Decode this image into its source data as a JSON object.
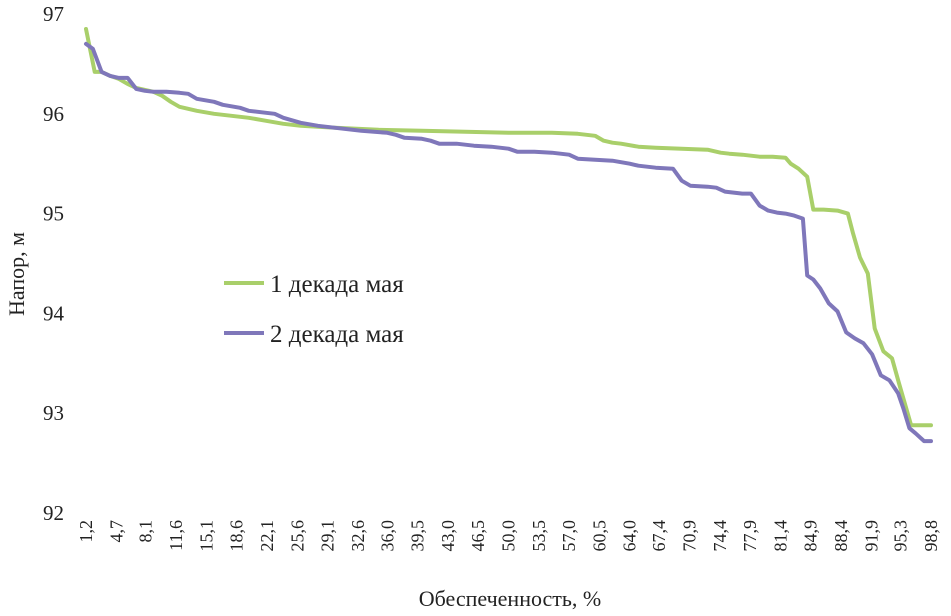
{
  "chart_data": {
    "type": "line",
    "title": "",
    "xlabel": "Обеспеченность, %",
    "ylabel": "Напор, м",
    "ylim": [
      92,
      97
    ],
    "yticks": [
      "92",
      "93",
      "94",
      "95",
      "96",
      "97"
    ],
    "xticks": [
      "1,2",
      "4,7",
      "8,1",
      "11,6",
      "15,1",
      "18,6",
      "22,1",
      "25,6",
      "29,1",
      "32,6",
      "36,0",
      "39,5",
      "43,0",
      "46,5",
      "50,0",
      "53,5",
      "57,0",
      "60,5",
      "64,0",
      "67,4",
      "70,9",
      "74,4",
      "77,9",
      "81,4",
      "84,9",
      "88,4",
      "91,9",
      "95,3",
      "98,8"
    ],
    "xlim": [
      1.2,
      98.8
    ],
    "grid": false,
    "legend_position": "center-left",
    "series": [
      {
        "name": "1 декада мая",
        "color": "#a9cf6a",
        "x": [
          1.2,
          2.2,
          3.0,
          4.0,
          5.0,
          6.0,
          7.0,
          9.0,
          10.0,
          11.0,
          12.0,
          14.0,
          16.0,
          18.0,
          20.0,
          22.0,
          24.0,
          26.0,
          28.0,
          30.0,
          35.0,
          40.0,
          45.0,
          50.0,
          55.0,
          58.0,
          60.0,
          61.0,
          62.0,
          63.0,
          65.0,
          67.0,
          70.0,
          73.0,
          74.5,
          75.5,
          77.0,
          79.0,
          80.5,
          82.0,
          82.6,
          83.5,
          84.5,
          85.2,
          86.4,
          88.0,
          89.2,
          89.8,
          90.6,
          91.5,
          92.3,
          93.3,
          94.3,
          95.1,
          96.5,
          97.3,
          98.8
        ],
        "values": [
          96.85,
          96.42,
          96.42,
          96.38,
          96.35,
          96.3,
          96.26,
          96.22,
          96.18,
          96.12,
          96.07,
          96.03,
          96.0,
          95.98,
          95.96,
          95.93,
          95.9,
          95.88,
          95.87,
          95.86,
          95.84,
          95.83,
          95.82,
          95.81,
          95.81,
          95.8,
          95.78,
          95.73,
          95.71,
          95.7,
          95.67,
          95.66,
          95.65,
          95.64,
          95.61,
          95.6,
          95.59,
          95.57,
          95.57,
          95.56,
          95.5,
          95.45,
          95.37,
          95.04,
          95.04,
          95.03,
          95.0,
          94.8,
          94.56,
          94.4,
          93.85,
          93.62,
          93.55,
          93.3,
          92.88,
          92.88,
          92.88
        ]
      },
      {
        "name": "2 декада мая",
        "color": "#7f77ba",
        "x": [
          1.2,
          2.0,
          3.0,
          4.0,
          5.0,
          6.0,
          7.0,
          8.0,
          9.0,
          10.5,
          12.0,
          13.0,
          14.0,
          16.0,
          17.0,
          19.0,
          20.0,
          22.0,
          23.0,
          24.0,
          26.0,
          28.0,
          30.0,
          33.0,
          36.0,
          37.0,
          38.0,
          40.0,
          41.0,
          42.0,
          44.0,
          46.0,
          48.0,
          50.0,
          51.0,
          53.0,
          55.0,
          57.0,
          58.0,
          60.0,
          62.0,
          64.0,
          65.0,
          67.0,
          69.0,
          70.0,
          71.0,
          73.0,
          74.0,
          75.0,
          77.0,
          78.0,
          79.0,
          80.0,
          81.0,
          82.0,
          83.0,
          84.0,
          84.5,
          85.2,
          86.0,
          87.0,
          88.0,
          89.0,
          90.0,
          91.0,
          92.0,
          93.0,
          94.0,
          95.0,
          95.6,
          96.3,
          97.0,
          98.0,
          98.8
        ],
        "values": [
          96.7,
          96.65,
          96.42,
          96.38,
          96.36,
          96.36,
          96.25,
          96.23,
          96.22,
          96.22,
          96.21,
          96.2,
          96.15,
          96.12,
          96.09,
          96.06,
          96.03,
          96.01,
          96.0,
          95.96,
          95.91,
          95.88,
          95.86,
          95.83,
          95.81,
          95.79,
          95.76,
          95.75,
          95.73,
          95.7,
          95.7,
          95.68,
          95.67,
          95.65,
          95.62,
          95.62,
          95.61,
          95.59,
          95.55,
          95.54,
          95.53,
          95.5,
          95.48,
          95.46,
          95.45,
          95.33,
          95.28,
          95.27,
          95.26,
          95.22,
          95.2,
          95.2,
          95.08,
          95.03,
          95.01,
          95.0,
          94.98,
          94.95,
          94.38,
          94.34,
          94.25,
          94.1,
          94.02,
          93.81,
          93.75,
          93.7,
          93.59,
          93.38,
          93.33,
          93.2,
          93.05,
          92.85,
          92.8,
          92.72,
          92.72
        ]
      }
    ]
  }
}
